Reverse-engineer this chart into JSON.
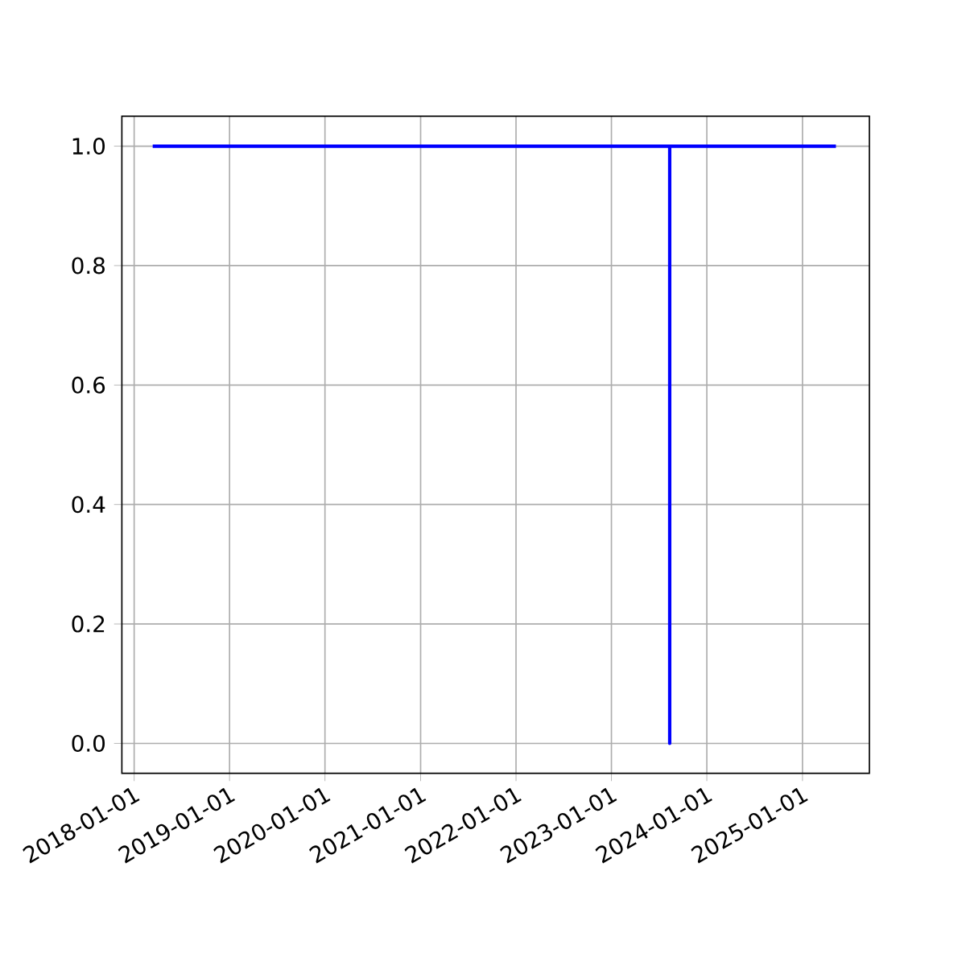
{
  "chart_data": {
    "type": "line",
    "x": [
      "2018-03-13",
      "2023-08-12",
      "2023-08-12",
      "2023-08-12",
      "2025-05-09"
    ],
    "values": [
      1,
      1,
      0,
      1,
      1
    ],
    "color": "#0000ff",
    "xlim": [
      "2017-11-15",
      "2025-09-14"
    ],
    "xticks": [
      "2018-01-01",
      "2019-01-01",
      "2020-01-01",
      "2021-01-01",
      "2022-01-01",
      "2023-01-01",
      "2024-01-01",
      "2025-01-01"
    ],
    "ylim": [
      -0.05,
      1.05
    ],
    "yticks": [
      {
        "value": 0,
        "label": "0.0"
      },
      {
        "value": 0.2,
        "label": "0.2"
      },
      {
        "value": 0.4,
        "label": "0.4"
      },
      {
        "value": 0.6,
        "label": "0.6"
      },
      {
        "value": 0.8,
        "label": "0.8"
      },
      {
        "value": 1,
        "label": "1.0"
      }
    ],
    "grid": true
  }
}
